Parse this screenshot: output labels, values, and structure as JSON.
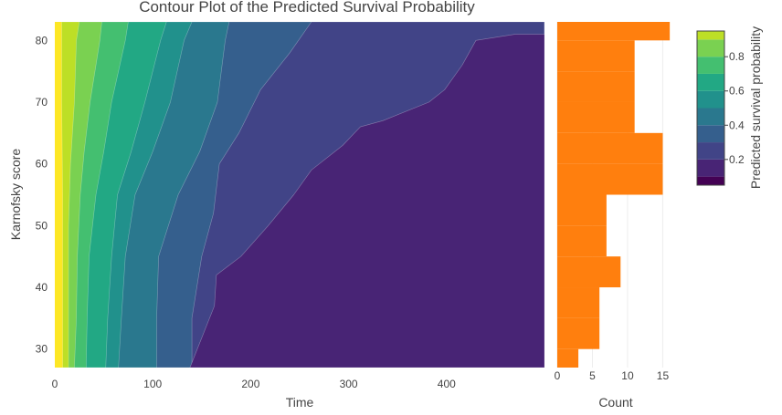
{
  "chart_data": [
    {
      "type": "contour",
      "title": "Contour Plot of the Predicted Survival Probability",
      "xlabel": "Time",
      "ylabel": "Karnofsky score",
      "xlim": [
        0,
        500
      ],
      "ylim": [
        27,
        83
      ],
      "xticks": [
        0,
        100,
        200,
        300,
        400
      ],
      "yticks": [
        30,
        40,
        50,
        60,
        70,
        80
      ],
      "colorbar": {
        "title": "Predicted survival probability",
        "ticks": [
          0.2,
          0.4,
          0.6,
          0.8
        ],
        "range": [
          0.05,
          0.95
        ],
        "levels": [
          0.1,
          0.2,
          0.3,
          0.4,
          0.5,
          0.6,
          0.7,
          0.8,
          0.9
        ],
        "colors": [
          "#440154",
          "#482475",
          "#414487",
          "#355f8d",
          "#2a788e",
          "#21918c",
          "#22a884",
          "#44bf70",
          "#7ad151",
          "#bddf26",
          "#fde725"
        ]
      },
      "contours": [
        {
          "level": 0.9,
          "points": [
            [
              8,
              27
            ],
            [
              8,
              40
            ],
            [
              8,
              55
            ],
            [
              7,
              70
            ],
            [
              7,
              83
            ]
          ]
        },
        {
          "level": 0.8,
          "points": [
            [
              14,
              27
            ],
            [
              14,
              40
            ],
            [
              14,
              50
            ],
            [
              16,
              60
            ],
            [
              20,
              70
            ],
            [
              22,
              80
            ],
            [
              25,
              83
            ]
          ]
        },
        {
          "level": 0.7,
          "points": [
            [
              20,
              27
            ],
            [
              22,
              35
            ],
            [
              23,
              45
            ],
            [
              26,
              55
            ],
            [
              30,
              62
            ],
            [
              36,
              70
            ],
            [
              46,
              80
            ],
            [
              48,
              83
            ]
          ]
        },
        {
          "level": 0.6,
          "points": [
            [
              32,
              27
            ],
            [
              33,
              35
            ],
            [
              35,
              45
            ],
            [
              42,
              55
            ],
            [
              50,
              62
            ],
            [
              58,
              70
            ],
            [
              72,
              80
            ],
            [
              75,
              83
            ]
          ]
        },
        {
          "level": 0.5,
          "points": [
            [
              52,
              27
            ],
            [
              54,
              35
            ],
            [
              58,
              45
            ],
            [
              64,
              55
            ],
            [
              78,
              62
            ],
            [
              92,
              70
            ],
            [
              108,
              80
            ],
            [
              114,
              83
            ]
          ]
        },
        {
          "level": 0.4,
          "points": [
            [
              65,
              27
            ],
            [
              68,
              35
            ],
            [
              72,
              45
            ],
            [
              82,
              55
            ],
            [
              100,
              62
            ],
            [
              118,
              70
            ],
            [
              132,
              80
            ],
            [
              140,
              83
            ]
          ]
        },
        {
          "level": 0.3,
          "points": [
            [
              104,
              27
            ],
            [
              104,
              35
            ],
            [
              106,
              45
            ],
            [
              126,
              55
            ],
            [
              148,
              62
            ],
            [
              166,
              70
            ],
            [
              174,
              80
            ],
            [
              178,
              83
            ]
          ]
        },
        {
          "level": 0.2,
          "points": [
            [
              140,
              27
            ],
            [
              140,
              35
            ],
            [
              150,
              45
            ],
            [
              162,
              52
            ],
            [
              168,
              60
            ],
            [
              188,
              65
            ],
            [
              210,
              72
            ],
            [
              240,
              78
            ],
            [
              262,
              83
            ]
          ]
        },
        {
          "level": 0.1,
          "points": [
            [
              138,
              27
            ],
            [
              163,
              37
            ],
            [
              165,
              42
            ],
            [
              190,
              45
            ],
            [
              218,
              50
            ],
            [
              244,
              55
            ],
            [
              262,
              59
            ],
            [
              294,
              63
            ],
            [
              312,
              66
            ],
            [
              335,
              67
            ],
            [
              382,
              70
            ],
            [
              398,
              72
            ],
            [
              416,
              76
            ],
            [
              430,
              80
            ],
            [
              470,
              81
            ],
            [
              500,
              81
            ]
          ]
        }
      ]
    },
    {
      "type": "bar",
      "orientation": "horizontal",
      "xlabel": "Count",
      "xlim": [
        0,
        16.5
      ],
      "xticks": [
        0,
        5,
        10,
        15
      ],
      "color": "#ff7f0e",
      "bins": [
        {
          "y0": 27,
          "y1": 30,
          "count": 3
        },
        {
          "y0": 30,
          "y1": 35,
          "count": 6
        },
        {
          "y0": 35,
          "y1": 40,
          "count": 6
        },
        {
          "y0": 40,
          "y1": 45,
          "count": 9
        },
        {
          "y0": 45,
          "y1": 50,
          "count": 7
        },
        {
          "y0": 50,
          "y1": 55,
          "count": 7
        },
        {
          "y0": 55,
          "y1": 60,
          "count": 15
        },
        {
          "y0": 60,
          "y1": 65,
          "count": 15
        },
        {
          "y0": 65,
          "y1": 70,
          "count": 11
        },
        {
          "y0": 70,
          "y1": 75,
          "count": 11
        },
        {
          "y0": 75,
          "y1": 80,
          "count": 11
        },
        {
          "y0": 80,
          "y1": 83,
          "count": 16
        }
      ]
    }
  ]
}
